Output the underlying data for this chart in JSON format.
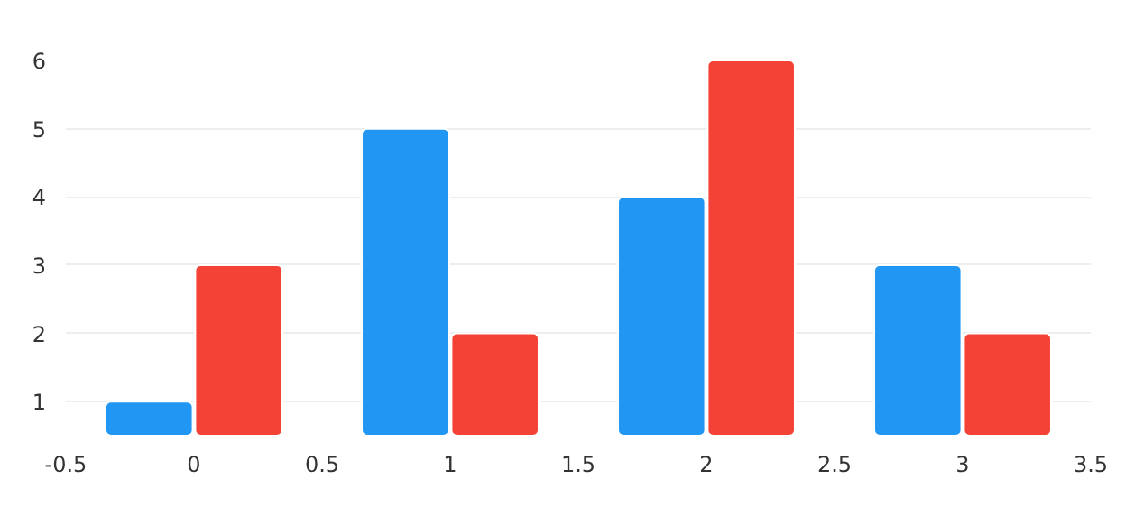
{
  "chart_data": {
    "type": "bar",
    "x": [
      0,
      1,
      2,
      3
    ],
    "series": [
      {
        "color": "#2196f3",
        "values": [
          1,
          5,
          4,
          3
        ]
      },
      {
        "color": "#f44336",
        "values": [
          3,
          2,
          6,
          2
        ]
      }
    ],
    "xlim": [
      -0.5,
      3.5
    ],
    "xticks": [
      -0.5,
      0,
      0.5,
      1,
      1.5,
      2,
      2.5,
      3,
      3.5
    ],
    "ylim": [
      0.5,
      6
    ],
    "yticks": [
      1,
      2,
      3,
      4,
      5,
      6
    ],
    "grid": "y"
  }
}
